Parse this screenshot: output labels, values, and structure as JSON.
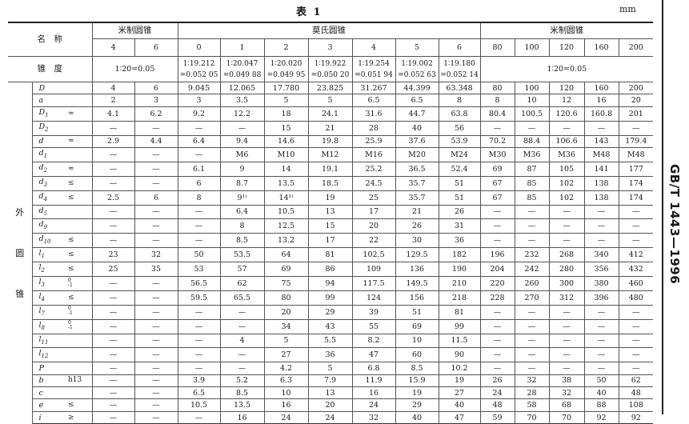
{
  "title": "表 1",
  "unit": "mm",
  "standard_code": "GB/T 1443—1996",
  "header": {
    "name_label": "名　称",
    "taper_label": "锥　度",
    "group_metric_left": "米制圆锥",
    "group_morse": "莫氏圆锥",
    "group_metric_right": "米制圆锥",
    "sizes": [
      "4",
      "6",
      "0",
      "1",
      "2",
      "3",
      "4",
      "5",
      "6",
      "80",
      "100",
      "120",
      "160",
      "200"
    ],
    "taper_metric_left": "1∶20=0.05",
    "taper_morse": [
      [
        "1∶19.212",
        "=0.052 05"
      ],
      [
        "1∶20.047",
        "=0.049 88"
      ],
      [
        "1∶20.020",
        "=0.049 95"
      ],
      [
        "1∶19.922",
        "=0.050 20"
      ],
      [
        "1∶19.254",
        "=0.051 94"
      ],
      [
        "1∶19.002",
        "=0.052 63"
      ],
      [
        "1∶19.180",
        "=0.052 14"
      ]
    ],
    "taper_metric_right": "1∶20=0.05"
  },
  "side_group_label": [
    "外",
    "圆",
    "锥"
  ],
  "rows": [
    {
      "sym": "D",
      "sub": "",
      "qual": "",
      "values": [
        "4",
        "6",
        "9.045",
        "12.065",
        "17.780",
        "23.825",
        "31.267",
        "44.399",
        "63.348",
        "80",
        "100",
        "120",
        "160",
        "200"
      ]
    },
    {
      "sym": "a",
      "sub": "",
      "qual": "",
      "values": [
        "2",
        "3",
        "3",
        "3.5",
        "5",
        "5",
        "6.5",
        "6.5",
        "8",
        "8",
        "10",
        "12",
        "16",
        "20"
      ]
    },
    {
      "sym": "D",
      "sub": "1",
      "qual": "≈",
      "values": [
        "4.1",
        "6.2",
        "9.2",
        "12.2",
        "18",
        "24.1",
        "31.6",
        "44.7",
        "63.8",
        "80.4",
        "100.5",
        "120.6",
        "160.8",
        "201"
      ]
    },
    {
      "sym": "D",
      "sub": "2",
      "qual": "",
      "values": [
        "—",
        "—",
        "—",
        "—",
        "15",
        "21",
        "28",
        "40",
        "56",
        "—",
        "—",
        "—",
        "—",
        "—"
      ]
    },
    {
      "sym": "d",
      "sub": "",
      "qual": "≈",
      "values": [
        "2.9",
        "4.4",
        "6.4",
        "9.4",
        "14.6",
        "19.8",
        "25.9",
        "37.6",
        "53.9",
        "70.2",
        "88.4",
        "106.6",
        "143",
        "179.4"
      ]
    },
    {
      "sym": "d",
      "sub": "1",
      "qual": "",
      "values": [
        "—",
        "—",
        "—",
        "M6",
        "M10",
        "M12",
        "M16",
        "M20",
        "M24",
        "M30",
        "M36",
        "M36",
        "M48",
        "M48"
      ]
    },
    {
      "sym": "d",
      "sub": "2",
      "qual": "≈",
      "values": [
        "—",
        "—",
        "6.1",
        "9",
        "14",
        "19.1",
        "25.2",
        "36.5",
        "52.4",
        "69",
        "87",
        "105",
        "141",
        "177"
      ]
    },
    {
      "sym": "d",
      "sub": "3",
      "qual": "≤",
      "values": [
        "—",
        "—",
        "6",
        "8.7",
        "13.5",
        "18.5",
        "24.5",
        "35.7",
        "51",
        "67",
        "85",
        "102",
        "138",
        "174"
      ]
    },
    {
      "sym": "d",
      "sub": "4",
      "qual": "≤",
      "values": [
        "2.5",
        "6",
        "8",
        "9¹⁾",
        "14¹⁾",
        "19",
        "25",
        "35.7",
        "51",
        "67",
        "85",
        "102",
        "138",
        "174"
      ]
    },
    {
      "sym": "d",
      "sub": "5",
      "qual": "",
      "values": [
        "—",
        "—",
        "—",
        "6.4",
        "10.5",
        "13",
        "17",
        "21",
        "26",
        "—",
        "—",
        "—",
        "—",
        "—"
      ]
    },
    {
      "sym": "d",
      "sub": "9",
      "qual": "",
      "values": [
        "—",
        "—",
        "—",
        "8",
        "12.5",
        "15",
        "20",
        "26",
        "31",
        "—",
        "—",
        "—",
        "—",
        "—"
      ]
    },
    {
      "sym": "d",
      "sub": "10",
      "qual": "≤",
      "values": [
        "—",
        "—",
        "—",
        "8.5",
        "13.2",
        "17",
        "22",
        "30",
        "36",
        "—",
        "—",
        "—",
        "—",
        "—"
      ]
    },
    {
      "sym": "l",
      "sub": "1",
      "qual": "≤",
      "values": [
        "23",
        "32",
        "50",
        "53.5",
        "64",
        "81",
        "102.5",
        "129.5",
        "182",
        "196",
        "232",
        "268",
        "340",
        "412"
      ]
    },
    {
      "sym": "l",
      "sub": "2",
      "qual": "≤",
      "values": [
        "25",
        "35",
        "53",
        "57",
        "69",
        "86",
        "109",
        "136",
        "190",
        "204",
        "242",
        "280",
        "356",
        "432"
      ]
    },
    {
      "sym": "l",
      "sub": "3",
      "qual": "",
      "tol": {
        "upper": "0",
        "lower": "-1"
      },
      "values": [
        "—",
        "—",
        "56.5",
        "62",
        "75",
        "94",
        "117.5",
        "149.5",
        "210",
        "220",
        "260",
        "300",
        "380",
        "460"
      ]
    },
    {
      "sym": "l",
      "sub": "4",
      "qual": "≤",
      "values": [
        "—",
        "—",
        "59.5",
        "65.5",
        "80",
        "99",
        "124",
        "156",
        "218",
        "228",
        "270",
        "312",
        "396",
        "480"
      ]
    },
    {
      "sym": "l",
      "sub": "7",
      "qual": "",
      "tol": {
        "upper": "0",
        "lower": "-1"
      },
      "values": [
        "—",
        "—",
        "—",
        "—",
        "20",
        "29",
        "39",
        "51",
        "81",
        "—",
        "—",
        "—",
        "—",
        "—"
      ]
    },
    {
      "sym": "l",
      "sub": "8",
      "qual": "",
      "tol": {
        "upper": "0",
        "lower": "-1"
      },
      "values": [
        "—",
        "—",
        "—",
        "—",
        "34",
        "43",
        "55",
        "69",
        "99",
        "—",
        "—",
        "—",
        "—",
        "—"
      ]
    },
    {
      "sym": "l",
      "sub": "11",
      "qual": "",
      "values": [
        "—",
        "—",
        "—",
        "4",
        "5",
        "5.5",
        "8.2",
        "10",
        "11.5",
        "—",
        "—",
        "—",
        "—",
        "—"
      ]
    },
    {
      "sym": "l",
      "sub": "12",
      "qual": "",
      "values": [
        "—",
        "—",
        "—",
        "—",
        "27",
        "36",
        "47",
        "60",
        "90",
        "—",
        "—",
        "—",
        "—",
        "—"
      ]
    },
    {
      "sym": "P",
      "sub": "",
      "qual": "",
      "values": [
        "—",
        "—",
        "—",
        "—",
        "4.2",
        "5",
        "6.8",
        "8.5",
        "10.2",
        "—",
        "—",
        "—",
        "—",
        "—"
      ]
    },
    {
      "sym": "b",
      "sub": "",
      "qual": "h13",
      "values": [
        "—",
        "—",
        "3.9",
        "5.2",
        "6.3",
        "7.9",
        "11.9",
        "15.9",
        "19",
        "26",
        "32",
        "38",
        "50",
        "62"
      ]
    },
    {
      "sym": "c",
      "sub": "",
      "qual": "",
      "values": [
        "—",
        "—",
        "6.5",
        "8.5",
        "10",
        "13",
        "16",
        "19",
        "27",
        "24",
        "28",
        "32",
        "40",
        "48"
      ]
    },
    {
      "sym": "e",
      "sub": "",
      "qual": "≤",
      "values": [
        "—",
        "—",
        "10.5",
        "13.5",
        "16",
        "20",
        "24",
        "29",
        "40",
        "48",
        "58",
        "68",
        "88",
        "108"
      ]
    },
    {
      "sym": "i",
      "sub": "",
      "qual": "≥",
      "values": [
        "—",
        "—",
        "—",
        "16",
        "24",
        "24",
        "32",
        "40",
        "47",
        "59",
        "70",
        "70",
        "92",
        "92"
      ]
    }
  ]
}
